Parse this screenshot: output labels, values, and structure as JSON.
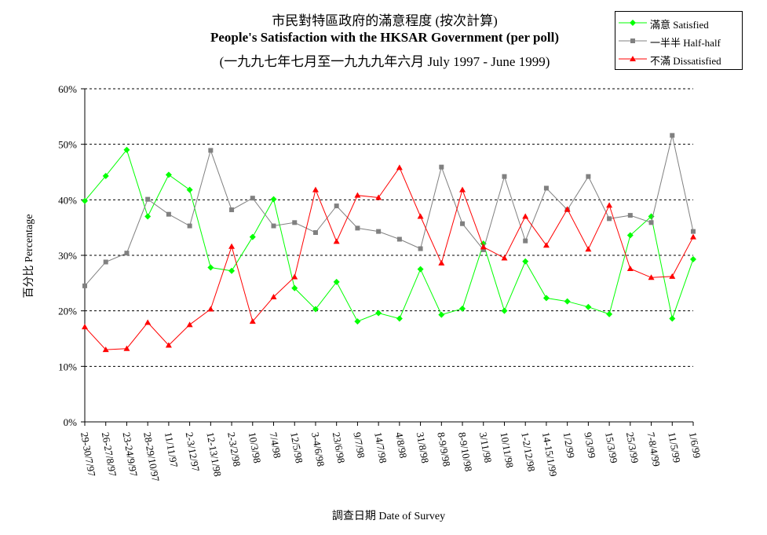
{
  "chart_data": {
    "type": "line",
    "title_cn": "市民對特區政府的滿意程度 (按次計算)",
    "title": "People's Satisfaction with the HKSAR Government (per poll)",
    "subtitle": "(一九九七年七月至一九九九年六月 July 1997 - June 1999)",
    "xlabel": "調查日期 Date of Survey",
    "ylabel": "百分比 Percentage",
    "ylim": [
      0,
      60
    ],
    "yticks": [
      "0%",
      "10%",
      "20%",
      "30%",
      "40%",
      "50%",
      "60%"
    ],
    "grid": true,
    "legend_position": "top-right",
    "categories": [
      "29-30/7/97",
      "26-27/8/97",
      "23-24/9/97",
      "28-29/10/97",
      "11/11/97",
      "2-3/12/97",
      "12-13/1/98",
      "2-3/2/98",
      "10/3/98",
      "7/4/98",
      "12/5/98",
      "3-4/6/98",
      "23/6/98",
      "9/7/98",
      "14/7/98",
      "4/8/98",
      "31/8/98",
      "8-9/9/98",
      "8-9/10/98",
      "3/11/98",
      "10/11/98",
      "1-2/12/98",
      "14-15/1/99",
      "1/2/99",
      "9/3/99",
      "15/3/99",
      "25/3/99",
      "7-8/4/99",
      "11/5/99",
      "1/6/99"
    ],
    "series": [
      {
        "name": "滿意 Satisfied",
        "color": "#00ff00",
        "marker": "diamond",
        "values": [
          39.8,
          44.3,
          49.0,
          37.0,
          44.5,
          41.8,
          27.8,
          27.2,
          33.3,
          40.1,
          24.1,
          20.3,
          25.2,
          18.1,
          19.6,
          18.6,
          27.5,
          19.3,
          20.4,
          32.1,
          20.0,
          28.9,
          22.3,
          21.7,
          20.7,
          19.4,
          33.6,
          37.0,
          18.6,
          29.3
        ]
      },
      {
        "name": "一半半 Half-half",
        "color": "#808080",
        "marker": "square",
        "values": [
          24.5,
          28.8,
          30.4,
          40.1,
          37.4,
          35.3,
          48.9,
          38.2,
          40.3,
          35.3,
          35.9,
          34.1,
          38.9,
          34.9,
          34.3,
          32.9,
          31.2,
          45.9,
          35.7,
          31.0,
          44.2,
          32.6,
          42.1,
          38.2,
          44.2,
          36.6,
          37.2,
          35.9,
          51.6,
          34.3
        ]
      },
      {
        "name": "不滿 Dissatisfied",
        "color": "#ff0000",
        "marker": "triangle",
        "values": [
          17.1,
          13.0,
          13.2,
          17.9,
          13.8,
          17.5,
          20.3,
          31.6,
          18.1,
          22.5,
          26.1,
          41.8,
          32.5,
          40.8,
          40.4,
          45.8,
          37.0,
          28.6,
          41.8,
          31.5,
          29.5,
          37.0,
          31.8,
          38.3,
          31.1,
          39.0,
          27.6,
          26.0,
          26.2,
          33.3
        ]
      }
    ]
  }
}
